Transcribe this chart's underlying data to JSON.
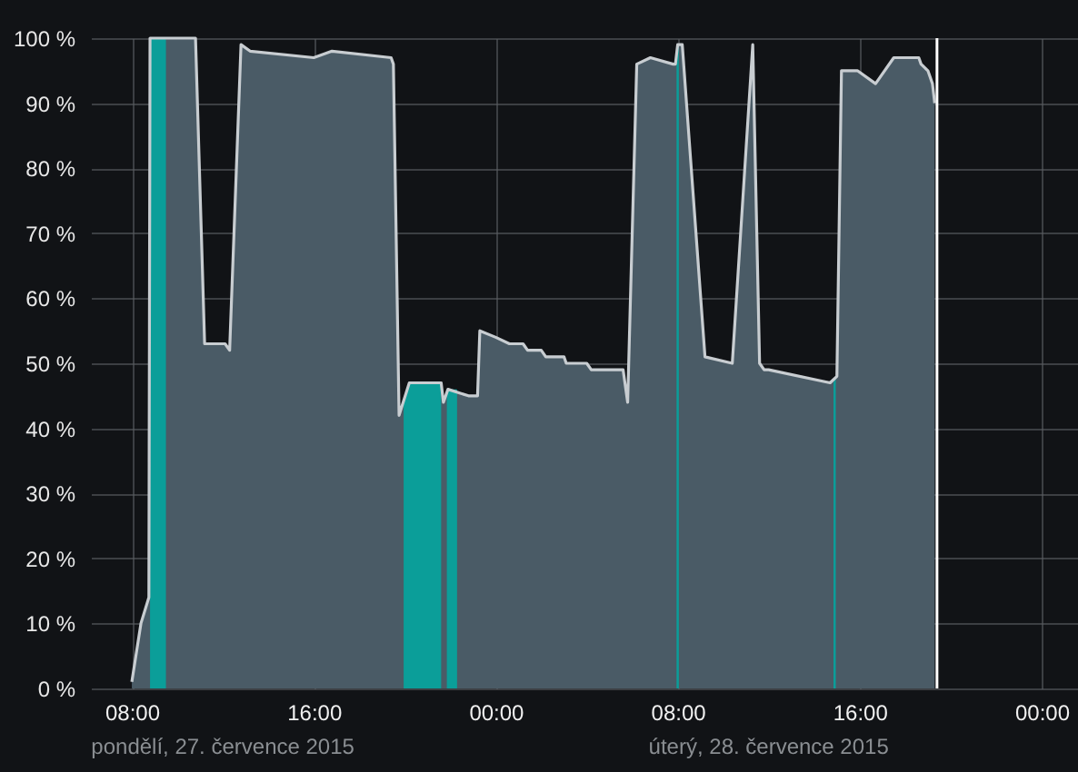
{
  "chart_data": {
    "type": "area",
    "xlim": [
      "2015-07-27T06:12",
      "2015-07-29T01:36"
    ],
    "xticks": [
      {
        "value": "2015-07-27T08:00",
        "label": "08:00"
      },
      {
        "value": "2015-07-27T16:00",
        "label": "16:00"
      },
      {
        "value": "2015-07-28T00:00",
        "label": "00:00"
      },
      {
        "value": "2015-07-28T08:00",
        "label": "08:00"
      },
      {
        "value": "2015-07-28T16:00",
        "label": "16:00"
      },
      {
        "value": "2015-07-29T00:00",
        "label": "00:00"
      }
    ],
    "ylim": [
      0,
      100
    ],
    "yticks": [
      {
        "value": 0,
        "label": "0 %"
      },
      {
        "value": 10,
        "label": "10 %"
      },
      {
        "value": 20,
        "label": "20 %"
      },
      {
        "value": 30,
        "label": "30 %"
      },
      {
        "value": 40,
        "label": "40 %"
      },
      {
        "value": 50,
        "label": "50 %"
      },
      {
        "value": 60,
        "label": "60 %"
      },
      {
        "value": 70,
        "label": "70 %"
      },
      {
        "value": 80,
        "label": "80 %"
      },
      {
        "value": 90,
        "label": "90 %"
      },
      {
        "value": 100,
        "label": "100 %"
      }
    ],
    "grid": true,
    "annotations": [
      "pondělí, 27. července 2015",
      "úterý, 28. července 2015"
    ],
    "ref_lines": [
      {
        "axis": "x",
        "value": "2015-07-28T19:24",
        "color": "#ffffff"
      }
    ],
    "series": [
      {
        "color": "#4a5b66",
        "x": [
          "2015-07-27T08:00",
          "2015-07-27T08:24",
          "2015-07-27T08:45",
          "2015-07-27T08:48",
          "2015-07-27T10:48",
          "2015-07-27T11:12",
          "2015-07-27T12:06",
          "2015-07-27T12:18",
          "2015-07-27T12:48",
          "2015-07-27T13:12",
          "2015-07-27T16:00",
          "2015-07-27T16:48",
          "2015-07-27T19:24",
          "2015-07-27T19:30",
          "2015-07-27T19:45",
          "2015-07-27T20:12",
          "2015-07-27T21:36",
          "2015-07-27T21:42",
          "2015-07-27T21:54",
          "2015-07-27T22:48",
          "2015-07-27T23:12",
          "2015-07-27T23:18",
          "2015-07-28T00:00",
          "2015-07-28T00:36",
          "2015-07-28T01:12",
          "2015-07-28T01:24",
          "2015-07-28T02:00",
          "2015-07-28T02:12",
          "2015-07-28T03:00",
          "2015-07-28T03:06",
          "2015-07-28T04:00",
          "2015-07-28T04:12",
          "2015-07-28T05:36",
          "2015-07-28T05:48",
          "2015-07-28T06:12",
          "2015-07-28T06:48",
          "2015-07-28T07:48",
          "2015-07-28T07:54",
          "2015-07-28T08:00",
          "2015-07-28T08:12",
          "2015-07-28T09:12",
          "2015-07-28T10:24",
          "2015-07-28T11:18",
          "2015-07-28T11:36",
          "2015-07-28T11:48",
          "2015-07-28T12:00",
          "2015-07-28T14:42",
          "2015-07-28T15:00",
          "2015-07-28T15:12",
          "2015-07-28T15:54",
          "2015-07-28T16:42",
          "2015-07-28T17:30",
          "2015-07-28T18:36",
          "2015-07-28T18:42",
          "2015-07-28T19:00",
          "2015-07-28T19:12",
          "2015-07-28T19:18"
        ],
        "values": [
          1,
          10,
          14,
          100,
          100,
          53,
          53,
          52,
          99,
          98,
          97,
          98,
          97,
          96,
          42,
          47,
          47,
          44,
          46,
          45,
          45,
          55,
          54,
          53,
          53,
          52,
          52,
          51,
          51,
          50,
          50,
          49,
          49,
          44,
          96,
          97,
          96,
          96,
          99,
          99,
          51,
          50,
          99,
          50,
          49,
          49,
          47,
          48,
          95,
          95,
          93,
          97,
          97,
          96,
          95,
          93,
          90
        ]
      },
      {
        "color": "#0b9e99",
        "x": [
          "2015-07-27T08:48",
          "2015-07-27T09:30"
        ],
        "values": [
          100,
          100
        ]
      },
      {
        "color": "#0b9e99",
        "x": [
          "2015-07-27T19:57",
          "2015-07-27T20:12",
          "2015-07-27T21:36"
        ],
        "values": [
          44,
          47,
          47
        ]
      },
      {
        "color": "#0b9e99",
        "x": [
          "2015-07-27T21:51",
          "2015-07-27T22:18"
        ],
        "values": [
          46,
          46
        ]
      },
      {
        "color": "#0b9e99",
        "x": [
          "2015-07-28T07:57",
          "2015-07-28T08:03"
        ],
        "values": [
          97,
          99
        ]
      },
      {
        "color": "#0b9e99",
        "x": [
          "2015-07-28T14:51",
          "2015-07-28T14:57"
        ],
        "values": [
          47,
          48
        ]
      }
    ]
  }
}
